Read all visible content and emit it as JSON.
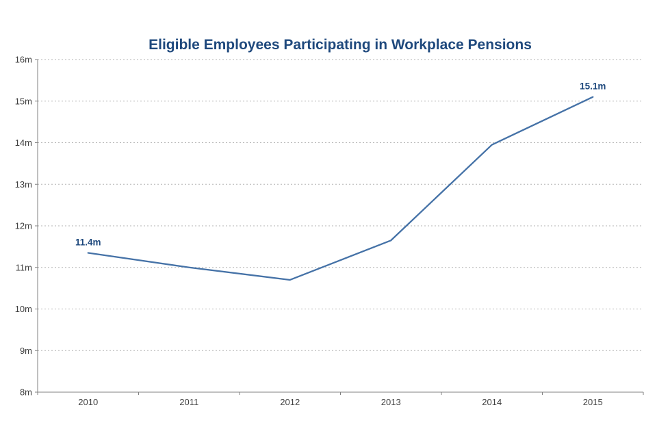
{
  "chart_data": {
    "type": "line",
    "title": "Eligible Employees Participating in Workplace Pensions",
    "categories": [
      "2010",
      "2011",
      "2012",
      "2013",
      "2014",
      "2015"
    ],
    "series": [
      {
        "name": "Eligible employees participating in workplace pensions (millions)",
        "values": [
          11.35,
          11.0,
          10.7,
          11.65,
          13.95,
          15.1
        ]
      }
    ],
    "xlabel": "",
    "ylabel": "",
    "ylim": [
      8,
      16
    ],
    "ytick_step": 1,
    "ytick_labels": [
      "8m",
      "9m",
      "10m",
      "11m",
      "12m",
      "13m",
      "14m",
      "15m",
      "16m"
    ],
    "grid": "horizontal-dotted",
    "legend": "none",
    "annotations": [
      {
        "index": 0,
        "label": "11.4m"
      },
      {
        "index": 5,
        "label": "15.1m"
      }
    ],
    "colors": {
      "line": "#4572A7",
      "title": "#1F497D",
      "data_label": "#1F497D",
      "axis": "#808080",
      "gridline": "#b3b3b3",
      "tick_text": "#404040",
      "background": "#ffffff"
    }
  }
}
